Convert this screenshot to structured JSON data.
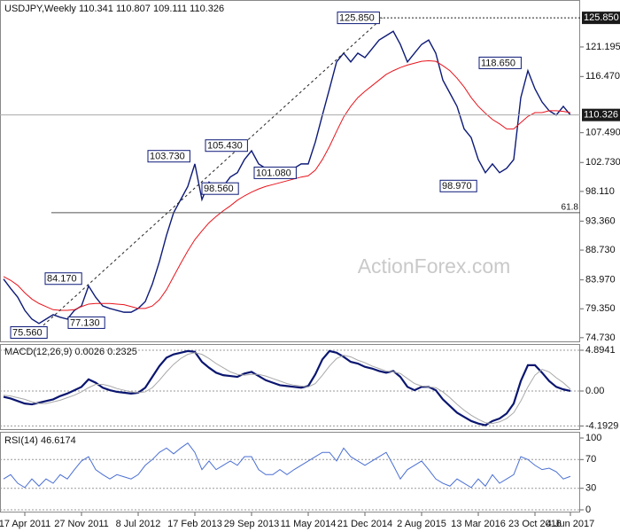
{
  "chart_data": [
    {
      "type": "line",
      "title": "USDJPY,Weekly  110.341 110.807 109.111 110.326",
      "watermark": "ActionForex.com",
      "ylim": [
        74.0,
        128.7
      ],
      "yticks": [
        {
          "value": 74.73,
          "label": "74.730"
        },
        {
          "value": 79.35,
          "label": "79.350"
        },
        {
          "value": 83.97,
          "label": "83.970"
        },
        {
          "value": 88.73,
          "label": "88.730"
        },
        {
          "value": 93.36,
          "label": "93.360"
        },
        {
          "value": 98.11,
          "label": "98.110"
        },
        {
          "value": 102.73,
          "label": "102.730"
        },
        {
          "value": 107.49,
          "label": "107.490"
        },
        {
          "value": 116.47,
          "label": "116.470"
        },
        {
          "value": 121.195,
          "label": "121.195"
        }
      ],
      "high_line": {
        "value": 125.85,
        "label": "125.850"
      },
      "last_line": {
        "value": 110.326,
        "label": "110.326"
      },
      "fib_line": {
        "value": 94.7,
        "label": "61.8"
      },
      "annotations": [
        {
          "value": 125.85,
          "label": "125.850"
        },
        {
          "value": 118.65,
          "label": "118.650"
        },
        {
          "value": 105.43,
          "label": "105.430"
        },
        {
          "value": 103.73,
          "label": "103.730"
        },
        {
          "value": 101.08,
          "label": "101.080"
        },
        {
          "value": 98.97,
          "label": "98.970"
        },
        {
          "value": 98.56,
          "label": "98.560"
        },
        {
          "value": 84.17,
          "label": "84.170"
        },
        {
          "value": 77.13,
          "label": "77.130"
        },
        {
          "value": 75.56,
          "label": "75.560"
        }
      ],
      "series": [
        {
          "color": "#0d1a78",
          "values": [
            84.1,
            82.6,
            81.2,
            79.1,
            77.7,
            77.0,
            77.7,
            78.4,
            78.0,
            77.7,
            79.1,
            79.8,
            83.0,
            81.2,
            79.8,
            79.4,
            79.1,
            78.8,
            78.8,
            79.4,
            80.5,
            83.3,
            86.9,
            91.1,
            94.7,
            96.8,
            98.9,
            102.5,
            96.8,
            99.6,
            98.6,
            98.9,
            100.4,
            101.1,
            103.2,
            104.6,
            102.5,
            101.8,
            101.8,
            101.5,
            101.8,
            101.8,
            102.5,
            102.5,
            106.0,
            110.3,
            114.5,
            118.8,
            120.2,
            118.8,
            120.2,
            119.5,
            120.9,
            122.3,
            123.0,
            123.7,
            121.6,
            118.8,
            120.2,
            121.6,
            122.3,
            120.2,
            115.9,
            113.8,
            111.7,
            108.1,
            106.7,
            103.2,
            101.1,
            102.5,
            101.1,
            101.8,
            103.2,
            113.1,
            117.4,
            114.5,
            112.4,
            111.0,
            110.3,
            111.7,
            110.326
          ]
        },
        {
          "color": "#e8141c",
          "values": [
            84.5,
            83.9,
            83.1,
            81.9,
            80.9,
            80.2,
            79.7,
            79.2,
            79.1,
            79.1,
            79.2,
            79.7,
            80.1,
            80.2,
            80.2,
            80.2,
            80.1,
            80.0,
            79.7,
            79.4,
            79.4,
            79.8,
            80.8,
            82.4,
            84.5,
            86.6,
            88.6,
            90.4,
            91.8,
            93.1,
            94.1,
            95.0,
            95.8,
            96.7,
            97.4,
            98.0,
            98.5,
            98.9,
            99.2,
            99.5,
            99.8,
            100.1,
            100.4,
            100.6,
            101.5,
            103.2,
            105.3,
            107.7,
            110.0,
            111.7,
            113.1,
            114.1,
            115.0,
            115.9,
            116.8,
            117.4,
            117.9,
            118.3,
            118.6,
            118.9,
            119.0,
            118.9,
            118.2,
            117.4,
            116.2,
            114.8,
            113.1,
            111.7,
            110.6,
            109.6,
            108.9,
            108.1,
            108.1,
            109.1,
            110.1,
            110.7,
            110.7,
            111.0,
            111.0,
            110.9,
            110.7
          ]
        }
      ]
    },
    {
      "type": "line",
      "title": "MACD(12,26,9) 0.0026 0.2325",
      "ylim": [
        -4.68,
        5.64
      ],
      "yticks": [
        -4.1929,
        {
          "value": 0,
          "label": "0.00"
        },
        4.8941
      ],
      "series": [
        {
          "color": "#0a1670",
          "values": [
            -0.7,
            -0.9,
            -1.2,
            -1.5,
            -1.6,
            -1.4,
            -1.2,
            -1.0,
            -0.6,
            -0.3,
            0.1,
            0.5,
            1.4,
            1.0,
            0.4,
            0.1,
            -0.1,
            -0.2,
            -0.3,
            -0.2,
            0.4,
            1.7,
            3.0,
            4.0,
            4.4,
            4.6,
            4.8,
            4.7,
            3.5,
            2.8,
            2.2,
            1.9,
            1.8,
            1.7,
            2.1,
            2.3,
            1.8,
            1.3,
            1.0,
            0.7,
            0.6,
            0.5,
            0.4,
            0.6,
            2.0,
            3.8,
            4.8,
            4.6,
            4.1,
            3.5,
            3.3,
            2.9,
            2.7,
            2.4,
            2.2,
            2.4,
            1.7,
            0.5,
            0.1,
            0.5,
            0.5,
            0.1,
            -1.0,
            -1.8,
            -2.6,
            -3.1,
            -3.6,
            -3.9,
            -4.1,
            -3.6,
            -3.3,
            -2.7,
            -1.5,
            1.2,
            3.1,
            3.1,
            2.2,
            1.2,
            0.5,
            0.2,
            0.0026
          ]
        },
        {
          "color": "#a8a8a8",
          "values": [
            -0.5,
            -0.6,
            -0.8,
            -1.0,
            -1.3,
            -1.5,
            -1.5,
            -1.3,
            -1.1,
            -0.8,
            -0.5,
            -0.1,
            0.4,
            0.8,
            0.8,
            0.6,
            0.3,
            0.1,
            -0.1,
            -0.2,
            -0.1,
            0.4,
            1.3,
            2.3,
            3.2,
            3.9,
            4.4,
            4.6,
            4.4,
            3.9,
            3.3,
            2.8,
            2.3,
            2.0,
            1.9,
            2.0,
            2.0,
            1.8,
            1.5,
            1.2,
            0.9,
            0.7,
            0.6,
            0.5,
            0.9,
            1.9,
            3.0,
            3.9,
            4.3,
            4.1,
            3.7,
            3.4,
            3.0,
            2.7,
            2.4,
            2.3,
            2.1,
            1.5,
            0.9,
            0.6,
            0.5,
            0.4,
            -0.1,
            -0.8,
            -1.6,
            -2.3,
            -2.9,
            -3.4,
            -3.8,
            -3.9,
            -3.7,
            -3.3,
            -2.6,
            -1.2,
            0.5,
            1.9,
            2.6,
            2.3,
            1.6,
            1.0,
            0.2325
          ]
        }
      ]
    },
    {
      "type": "line",
      "title": "RSI(14) 46.6174",
      "ylim": [
        -3.7,
        107.4
      ],
      "yticks": [
        0,
        30,
        70,
        100
      ],
      "categories": [
        null,
        null,
        null,
        "17 Apr 2011",
        null,
        null,
        null,
        null,
        null,
        null,
        null,
        "27 Nov 2011",
        null,
        null,
        null,
        null,
        null,
        null,
        null,
        "8 Jul 2012",
        null,
        null,
        null,
        null,
        null,
        null,
        null,
        "17 Feb 2013",
        null,
        null,
        null,
        null,
        null,
        null,
        null,
        "29 Sep 2013",
        null,
        null,
        null,
        null,
        null,
        null,
        null,
        "11 May 2014",
        null,
        null,
        null,
        null,
        null,
        null,
        null,
        "21 Dec 2014",
        null,
        null,
        null,
        null,
        null,
        null,
        null,
        "2 Aug 2015",
        null,
        null,
        null,
        null,
        null,
        null,
        null,
        "13 Mar 2016",
        null,
        null,
        null,
        null,
        null,
        null,
        null,
        "23 Oct 2016",
        null,
        null,
        null,
        null,
        "4 Jun 2017"
      ],
      "series": [
        {
          "color": "#4a6fd4",
          "values": [
            43,
            49,
            37,
            31,
            43,
            33,
            43,
            37,
            49,
            43,
            56,
            68,
            74,
            56,
            49,
            43,
            49,
            46,
            43,
            49,
            62,
            70,
            80,
            86,
            78,
            86,
            93,
            80,
            56,
            68,
            56,
            62,
            68,
            62,
            74,
            74,
            56,
            49,
            49,
            56,
            49,
            56,
            62,
            68,
            74,
            80,
            80,
            68,
            86,
            74,
            68,
            62,
            68,
            74,
            80,
            62,
            43,
            56,
            62,
            68,
            56,
            43,
            37,
            33,
            43,
            37,
            31,
            43,
            33,
            49,
            37,
            43,
            49,
            74,
            70,
            62,
            56,
            58,
            53,
            43,
            46.6174
          ]
        }
      ]
    }
  ]
}
